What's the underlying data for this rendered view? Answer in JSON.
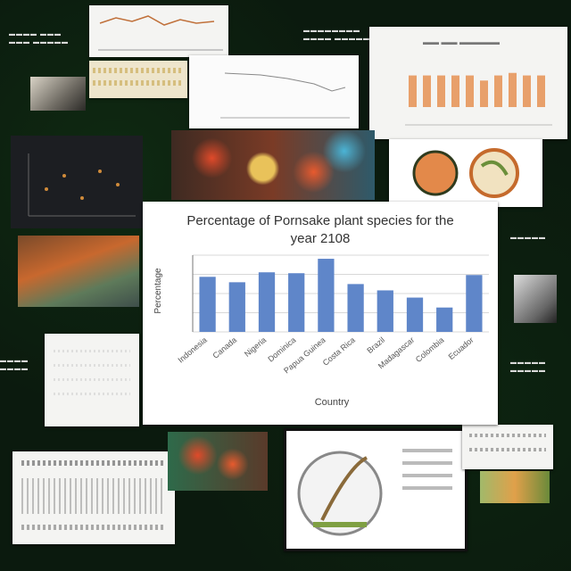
{
  "chart_data": {
    "type": "bar",
    "title": "Percentage of Pornsake plant species for the year 2108",
    "xlabel": "Country",
    "ylabel": "Percentage",
    "categories": [
      "Indonesia",
      "Canada",
      "Nigeria",
      "Dominica",
      "Papua Guinea",
      "Costa Rica",
      "Brazil",
      "Madagascar",
      "Colombia",
      "Ecuador"
    ],
    "values": [
      61,
      55,
      66,
      65,
      81,
      53,
      46,
      38,
      27,
      63
    ],
    "ylim": [
      0,
      85
    ],
    "colors": {
      "bar": "#5f86c9",
      "grid": "#d8d8d8"
    }
  },
  "top_right_chart": {
    "title": "Species Richness",
    "values": [
      62,
      62,
      62,
      62,
      62,
      52,
      62,
      67,
      62,
      62
    ],
    "color": "#e8a06b"
  }
}
